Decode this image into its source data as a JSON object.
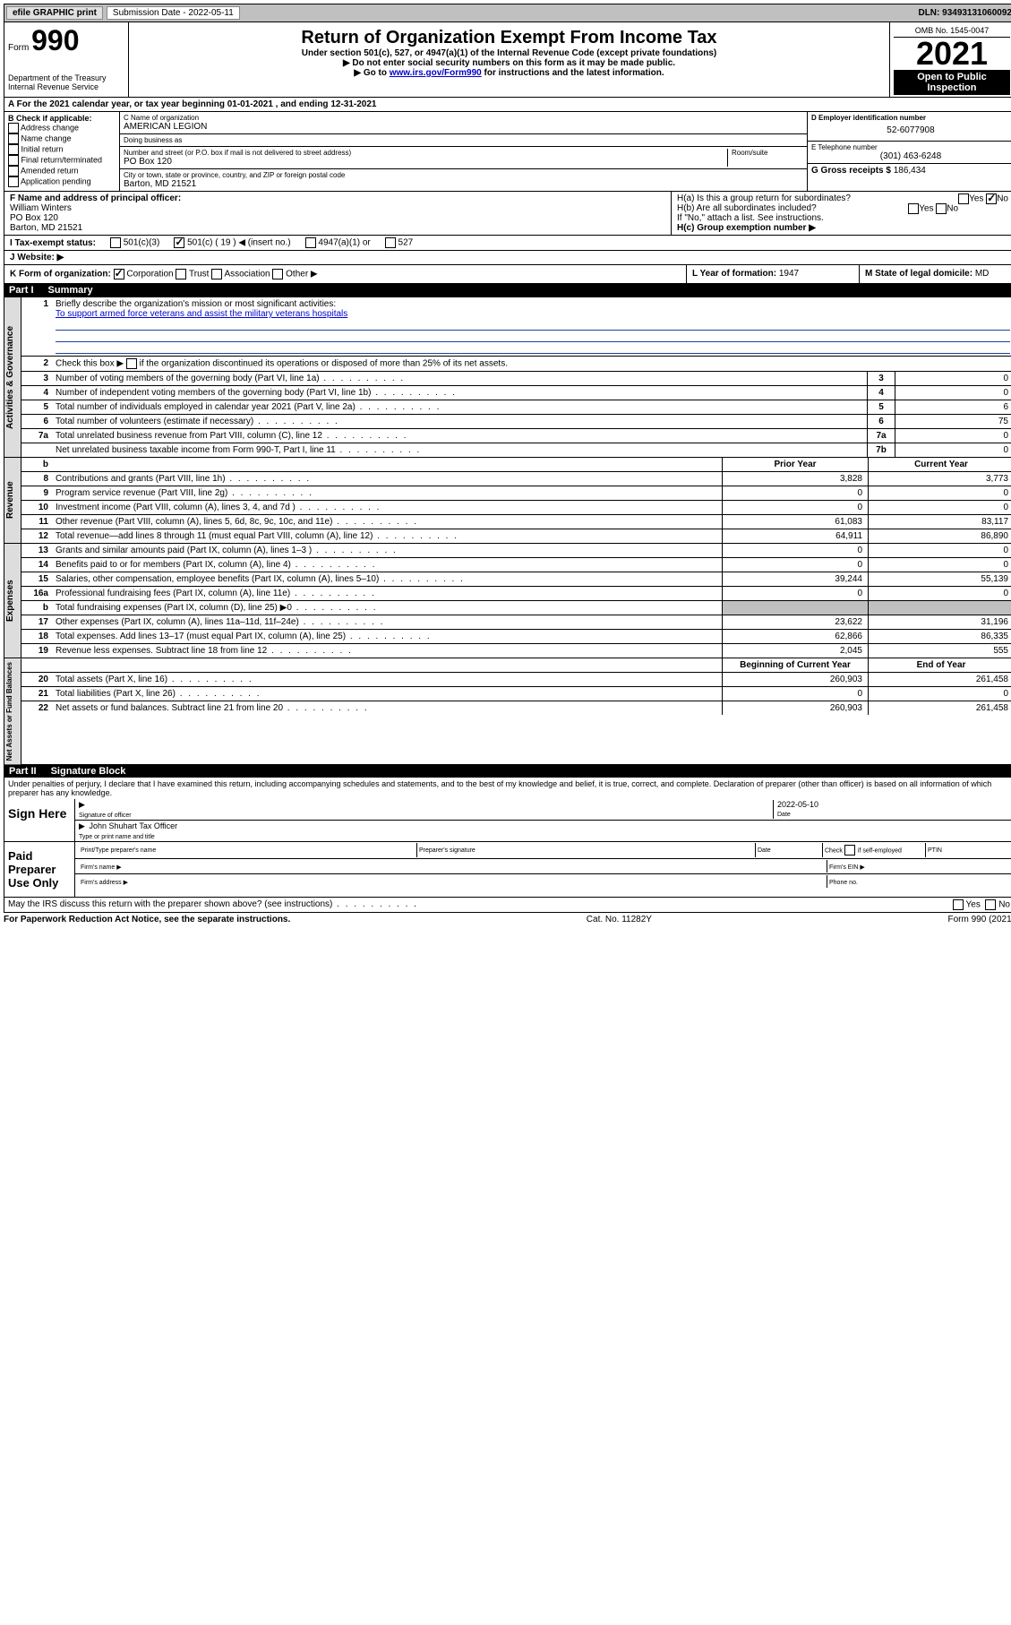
{
  "topbar": {
    "efile": "efile GRAPHIC print",
    "subdate_lbl": "Submission Date - 2022-05-11",
    "dln": "DLN: 93493131060092"
  },
  "head": {
    "form_lbl": "Form",
    "form_num": "990",
    "dept": "Department of the Treasury",
    "irs": "Internal Revenue Service",
    "title": "Return of Organization Exempt From Income Tax",
    "sub1": "Under section 501(c), 527, or 4947(a)(1) of the Internal Revenue Code (except private foundations)",
    "sub2": "▶ Do not enter social security numbers on this form as it may be made public.",
    "sub3_pre": "▶ Go to ",
    "sub3_link": "www.irs.gov/Form990",
    "sub3_post": " for instructions and the latest information.",
    "omb": "OMB No. 1545-0047",
    "year": "2021",
    "open": "Open to Public Inspection"
  },
  "a": {
    "text": "A For the 2021 calendar year, or tax year beginning 01-01-2021   , and ending 12-31-2021"
  },
  "b": {
    "lbl": "B Check if applicable:",
    "opts": [
      "Address change",
      "Name change",
      "Initial return",
      "Final return/terminated",
      "Amended return",
      "Application pending"
    ]
  },
  "c": {
    "name_lbl": "C Name of organization",
    "name": "AMERICAN LEGION",
    "dba_lbl": "Doing business as",
    "dba": "",
    "addr_lbl": "Number and street (or P.O. box if mail is not delivered to street address)",
    "room_lbl": "Room/suite",
    "addr": "PO Box 120",
    "city_lbl": "City or town, state or province, country, and ZIP or foreign postal code",
    "city": "Barton, MD  21521"
  },
  "d": {
    "ein_lbl": "D Employer identification number",
    "ein": "52-6077908",
    "phone_lbl": "E Telephone number",
    "phone": "(301) 463-6248",
    "gross_lbl": "G Gross receipts $",
    "gross": "186,434"
  },
  "f": {
    "lbl": "F Name and address of principal officer:",
    "name": "William Winters",
    "addr1": "PO Box 120",
    "addr2": "Barton, MD  21521"
  },
  "h": {
    "a": "H(a)  Is this a group return for subordinates?",
    "a_yes": "Yes",
    "a_no": "No",
    "b": "H(b)  Are all subordinates included?",
    "b_yes": "Yes",
    "b_no": "No",
    "b_note": "If \"No,\" attach a list. See instructions.",
    "c": "H(c)  Group exemption number ▶"
  },
  "i": {
    "lbl": "I   Tax-exempt status:",
    "o1": "501(c)(3)",
    "o2": "501(c) ( 19 ) ◀ (insert no.)",
    "o3": "4947(a)(1) or",
    "o4": "527"
  },
  "j": {
    "lbl": "J   Website: ▶",
    "val": ""
  },
  "k": {
    "lbl": "K Form of organization:",
    "opts": [
      "Corporation",
      "Trust",
      "Association",
      "Other ▶"
    ],
    "l_lbl": "L Year of formation:",
    "l_val": "1947",
    "m_lbl": "M State of legal domicile:",
    "m_val": "MD"
  },
  "part1": {
    "num": "Part I",
    "title": "Summary"
  },
  "gov": {
    "tab": "Activities & Governance",
    "l1": "Briefly describe the organization's mission or most significant activities:",
    "l1_text": "To support armed force veterans and assist the military veterans hospitals",
    "l2": "Check this box ▶       if the organization discontinued its operations or disposed of more than 25% of its net assets.",
    "rows": [
      {
        "n": "3",
        "d": "Number of voting members of the governing body (Part VI, line 1a)",
        "bn": "3",
        "v": "0"
      },
      {
        "n": "4",
        "d": "Number of independent voting members of the governing body (Part VI, line 1b)",
        "bn": "4",
        "v": "0"
      },
      {
        "n": "5",
        "d": "Total number of individuals employed in calendar year 2021 (Part V, line 2a)",
        "bn": "5",
        "v": "6"
      },
      {
        "n": "6",
        "d": "Total number of volunteers (estimate if necessary)",
        "bn": "6",
        "v": "75"
      },
      {
        "n": "7a",
        "d": "Total unrelated business revenue from Part VIII, column (C), line 12",
        "bn": "7a",
        "v": "0"
      },
      {
        "n": "",
        "d": "Net unrelated business taxable income from Form 990-T, Part I, line 11",
        "bn": "7b",
        "v": "0"
      }
    ]
  },
  "rev": {
    "tab": "Revenue",
    "hdr_b": "b",
    "hdr_py": "Prior Year",
    "hdr_cy": "Current Year",
    "rows": [
      {
        "n": "8",
        "d": "Contributions and grants (Part VIII, line 1h)",
        "py": "3,828",
        "cy": "3,773"
      },
      {
        "n": "9",
        "d": "Program service revenue (Part VIII, line 2g)",
        "py": "0",
        "cy": "0"
      },
      {
        "n": "10",
        "d": "Investment income (Part VIII, column (A), lines 3, 4, and 7d )",
        "py": "0",
        "cy": "0"
      },
      {
        "n": "11",
        "d": "Other revenue (Part VIII, column (A), lines 5, 6d, 8c, 9c, 10c, and 11e)",
        "py": "61,083",
        "cy": "83,117"
      },
      {
        "n": "12",
        "d": "Total revenue—add lines 8 through 11 (must equal Part VIII, column (A), line 12)",
        "py": "64,911",
        "cy": "86,890"
      }
    ]
  },
  "exp": {
    "tab": "Expenses",
    "rows": [
      {
        "n": "13",
        "d": "Grants and similar amounts paid (Part IX, column (A), lines 1–3 )",
        "py": "0",
        "cy": "0"
      },
      {
        "n": "14",
        "d": "Benefits paid to or for members (Part IX, column (A), line 4)",
        "py": "0",
        "cy": "0"
      },
      {
        "n": "15",
        "d": "Salaries, other compensation, employee benefits (Part IX, column (A), lines 5–10)",
        "py": "39,244",
        "cy": "55,139"
      },
      {
        "n": "16a",
        "d": "Professional fundraising fees (Part IX, column (A), line 11e)",
        "py": "0",
        "cy": "0"
      },
      {
        "n": "b",
        "d": "Total fundraising expenses (Part IX, column (D), line 25) ▶0",
        "py": "",
        "cy": "",
        "shaded": true
      },
      {
        "n": "17",
        "d": "Other expenses (Part IX, column (A), lines 11a–11d, 11f–24e)",
        "py": "23,622",
        "cy": "31,196"
      },
      {
        "n": "18",
        "d": "Total expenses. Add lines 13–17 (must equal Part IX, column (A), line 25)",
        "py": "62,866",
        "cy": "86,335"
      },
      {
        "n": "19",
        "d": "Revenue less expenses. Subtract line 18 from line 12",
        "py": "2,045",
        "cy": "555"
      }
    ]
  },
  "net": {
    "tab": "Net Assets or Fund Balances",
    "hdr_py": "Beginning of Current Year",
    "hdr_cy": "End of Year",
    "rows": [
      {
        "n": "20",
        "d": "Total assets (Part X, line 16)",
        "py": "260,903",
        "cy": "261,458"
      },
      {
        "n": "21",
        "d": "Total liabilities (Part X, line 26)",
        "py": "0",
        "cy": "0"
      },
      {
        "n": "22",
        "d": "Net assets or fund balances. Subtract line 21 from line 20",
        "py": "260,903",
        "cy": "261,458"
      }
    ]
  },
  "part2": {
    "num": "Part II",
    "title": "Signature Block"
  },
  "penalty": "Under penalties of perjury, I declare that I have examined this return, including accompanying schedules and statements, and to the best of my knowledge and belief, it is true, correct, and complete. Declaration of preparer (other than officer) is based on all information of which preparer has any knowledge.",
  "sign": {
    "lbl": "Sign Here",
    "sig_lbl": "Signature of officer",
    "date_lbl": "Date",
    "date": "2022-05-10",
    "name": "John Shuhart  Tax Officer",
    "name_lbl": "Type or print name and title"
  },
  "prep": {
    "lbl": "Paid Preparer Use Only",
    "c1": "Print/Type preparer's name",
    "c2": "Preparer's signature",
    "c3": "Date",
    "c4_pre": "Check",
    "c4_post": "if self-employed",
    "c5": "PTIN",
    "r2a": "Firm's name  ▶",
    "r2b": "Firm's EIN ▶",
    "r3a": "Firm's address ▶",
    "r3b": "Phone no."
  },
  "discuss": {
    "q": "May the IRS discuss this return with the preparer shown above? (see instructions)",
    "yes": "Yes",
    "no": "No"
  },
  "foot": {
    "l": "For Paperwork Reduction Act Notice, see the separate instructions.",
    "m": "Cat. No. 11282Y",
    "r": "Form 990 (2021)"
  }
}
